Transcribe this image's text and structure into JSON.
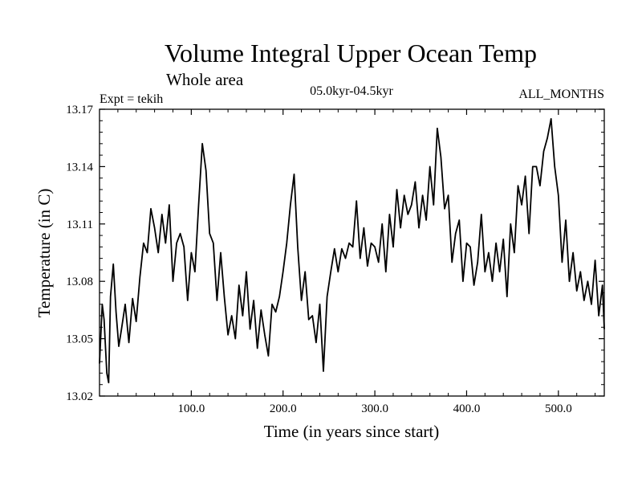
{
  "chart_data": {
    "type": "line",
    "title": "Volume Integral Upper Ocean Temp",
    "subtitle": "Whole area",
    "experiment_label": "Expt = tekih",
    "period_label": "05.0kyr-04.5kyr",
    "months_label": "ALL_MONTHS",
    "xlabel": "Time (in years since start)",
    "ylabel": "Temperature (in C)",
    "xlim": [
      0,
      550
    ],
    "ylim": [
      13.02,
      13.17
    ],
    "xticks": [
      100,
      200,
      300,
      400,
      500
    ],
    "xtick_labels": [
      "100.0",
      "200.0",
      "300.0",
      "400.0",
      "500.0"
    ],
    "yticks": [
      13.02,
      13.05,
      13.08,
      13.11,
      13.14,
      13.17
    ],
    "ytick_labels": [
      "13.02",
      "13.05",
      "13.08",
      "13.11",
      "13.14",
      "13.17"
    ],
    "grid": false,
    "series": [
      {
        "name": "Volume integral upper ocean temperature",
        "x": [
          0,
          3,
          5,
          8,
          10,
          12,
          15,
          18,
          21,
          24,
          28,
          32,
          36,
          40,
          44,
          48,
          52,
          56,
          60,
          64,
          68,
          72,
          76,
          80,
          84,
          88,
          92,
          96,
          100,
          104,
          108,
          112,
          116,
          120,
          124,
          128,
          132,
          136,
          140,
          144,
          148,
          152,
          156,
          160,
          164,
          168,
          172,
          176,
          180,
          184,
          188,
          192,
          196,
          200,
          204,
          208,
          212,
          216,
          220,
          224,
          228,
          232,
          236,
          240,
          244,
          248,
          252,
          256,
          260,
          264,
          268,
          272,
          276,
          280,
          284,
          288,
          292,
          296,
          300,
          304,
          308,
          312,
          316,
          320,
          324,
          328,
          332,
          336,
          340,
          344,
          348,
          352,
          356,
          360,
          364,
          368,
          372,
          376,
          380,
          384,
          388,
          392,
          396,
          400,
          404,
          408,
          412,
          416,
          420,
          424,
          428,
          432,
          436,
          440,
          444,
          448,
          452,
          456,
          460,
          464,
          468,
          472,
          476,
          480,
          484,
          488,
          492,
          496,
          500,
          504,
          508,
          512,
          516,
          520,
          524,
          528,
          532,
          536,
          540,
          544,
          548,
          550
        ],
        "values": [
          13.037,
          13.068,
          13.06,
          13.032,
          13.027,
          13.072,
          13.089,
          13.064,
          13.046,
          13.055,
          13.068,
          13.048,
          13.071,
          13.059,
          13.082,
          13.1,
          13.095,
          13.118,
          13.108,
          13.095,
          13.115,
          13.1,
          13.12,
          13.08,
          13.1,
          13.105,
          13.098,
          13.07,
          13.095,
          13.085,
          13.12,
          13.152,
          13.138,
          13.105,
          13.1,
          13.07,
          13.095,
          13.072,
          13.052,
          13.062,
          13.05,
          13.078,
          13.062,
          13.085,
          13.055,
          13.07,
          13.045,
          13.065,
          13.052,
          13.041,
          13.068,
          13.064,
          13.072,
          13.085,
          13.1,
          13.12,
          13.136,
          13.098,
          13.07,
          13.085,
          13.06,
          13.062,
          13.048,
          13.068,
          13.033,
          13.072,
          13.085,
          13.097,
          13.085,
          13.097,
          13.092,
          13.1,
          13.098,
          13.122,
          13.092,
          13.108,
          13.088,
          13.1,
          13.098,
          13.09,
          13.11,
          13.085,
          13.115,
          13.098,
          13.128,
          13.108,
          13.125,
          13.115,
          13.12,
          13.132,
          13.108,
          13.125,
          13.112,
          13.14,
          13.12,
          13.16,
          13.145,
          13.118,
          13.125,
          13.09,
          13.105,
          13.112,
          13.08,
          13.1,
          13.098,
          13.078,
          13.09,
          13.115,
          13.085,
          13.095,
          13.08,
          13.1,
          13.085,
          13.102,
          13.072,
          13.11,
          13.095,
          13.13,
          13.12,
          13.135,
          13.105,
          13.14,
          13.14,
          13.13,
          13.148,
          13.155,
          13.165,
          13.14,
          13.125,
          13.09,
          13.112,
          13.08,
          13.095,
          13.075,
          13.085,
          13.07,
          13.08,
          13.068,
          13.091,
          13.062,
          13.078,
          13.055
        ]
      }
    ]
  }
}
